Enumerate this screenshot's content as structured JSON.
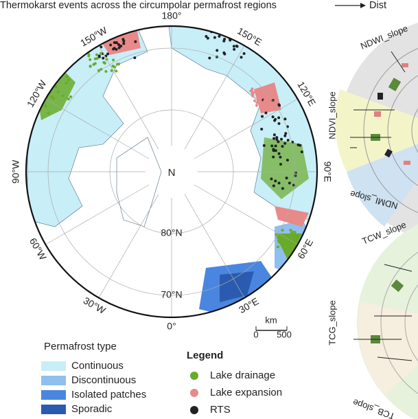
{
  "header": {
    "title": "Thermokarst events across the circumpolar permafrost regions",
    "next_panel": "Dist"
  },
  "map": {
    "meridian_labels": [
      "180°",
      "150°E",
      "120°E",
      "90°E",
      "60°E",
      "30°E",
      "0°",
      "30°W",
      "60°W",
      "90°W",
      "120°W",
      "150°W"
    ],
    "pole_label": "N",
    "latitude_labels": [
      "80°N",
      "70°N"
    ],
    "scale_bar": {
      "unit": "km",
      "start": "0",
      "end": "500"
    }
  },
  "permafrost_legend": {
    "title": "Permafrost type",
    "items": [
      "Continuous",
      "Discontinuous",
      "Isolated patches",
      "Sporadic"
    ]
  },
  "event_legend": {
    "title": "Legend",
    "items": [
      "Lake drainage",
      "Lake expansion",
      "RTS"
    ]
  },
  "side_panels": {
    "top": [
      "NDWI_slope",
      "NDVI_slope",
      "NDMI_slope"
    ],
    "bottom": [
      "TCW_slope",
      "TCG_slope",
      "TCB_slope"
    ]
  }
}
